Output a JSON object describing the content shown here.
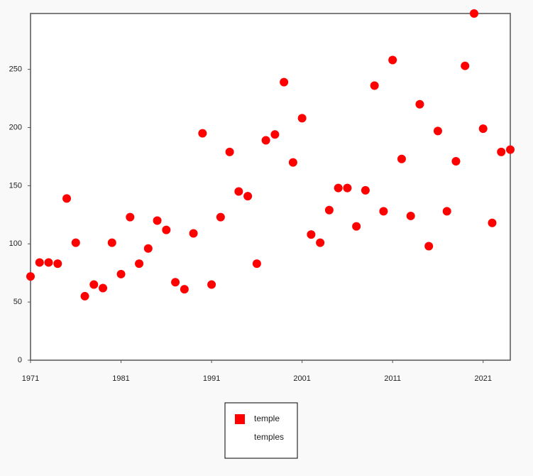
{
  "chart_data": {
    "type": "scatter",
    "x": [
      1971,
      1972,
      1973,
      1974,
      1975,
      1976,
      1977,
      1978,
      1979,
      1980,
      1981,
      1982,
      1983,
      1984,
      1985,
      1986,
      1987,
      1988,
      1989,
      1990,
      1991,
      1992,
      1993,
      1994,
      1995,
      1996,
      1997,
      1998,
      1999,
      2000,
      2001,
      2002,
      2003,
      2004,
      2005,
      2006,
      2007,
      2008,
      2009,
      2010,
      2011,
      2012,
      2013,
      2014,
      2015,
      2016,
      2017,
      2018,
      2019,
      2020,
      2021,
      2022,
      2023,
      2024
    ],
    "series": [
      {
        "name": "temple",
        "color": "#ff0000",
        "values": [
          72,
          84,
          84,
          83,
          139,
          101,
          55,
          65,
          62,
          101,
          74,
          123,
          83,
          96,
          120,
          112,
          67,
          61,
          109,
          195,
          65,
          123,
          179,
          145,
          141,
          83,
          189,
          194,
          239,
          170,
          208,
          108,
          101,
          129,
          148,
          148,
          115,
          146,
          236,
          128,
          258,
          173,
          124,
          220,
          98,
          197,
          128,
          171,
          253,
          298,
          199,
          118,
          179,
          181
        ]
      },
      {
        "name": "temples"
      }
    ],
    "xlim": [
      1971,
      2024
    ],
    "xticks": [
      1971,
      1981,
      1991,
      2001,
      2011,
      2021
    ],
    "ylim": [
      0,
      298
    ],
    "yticks": [
      0,
      50,
      100,
      150,
      200,
      250
    ]
  }
}
